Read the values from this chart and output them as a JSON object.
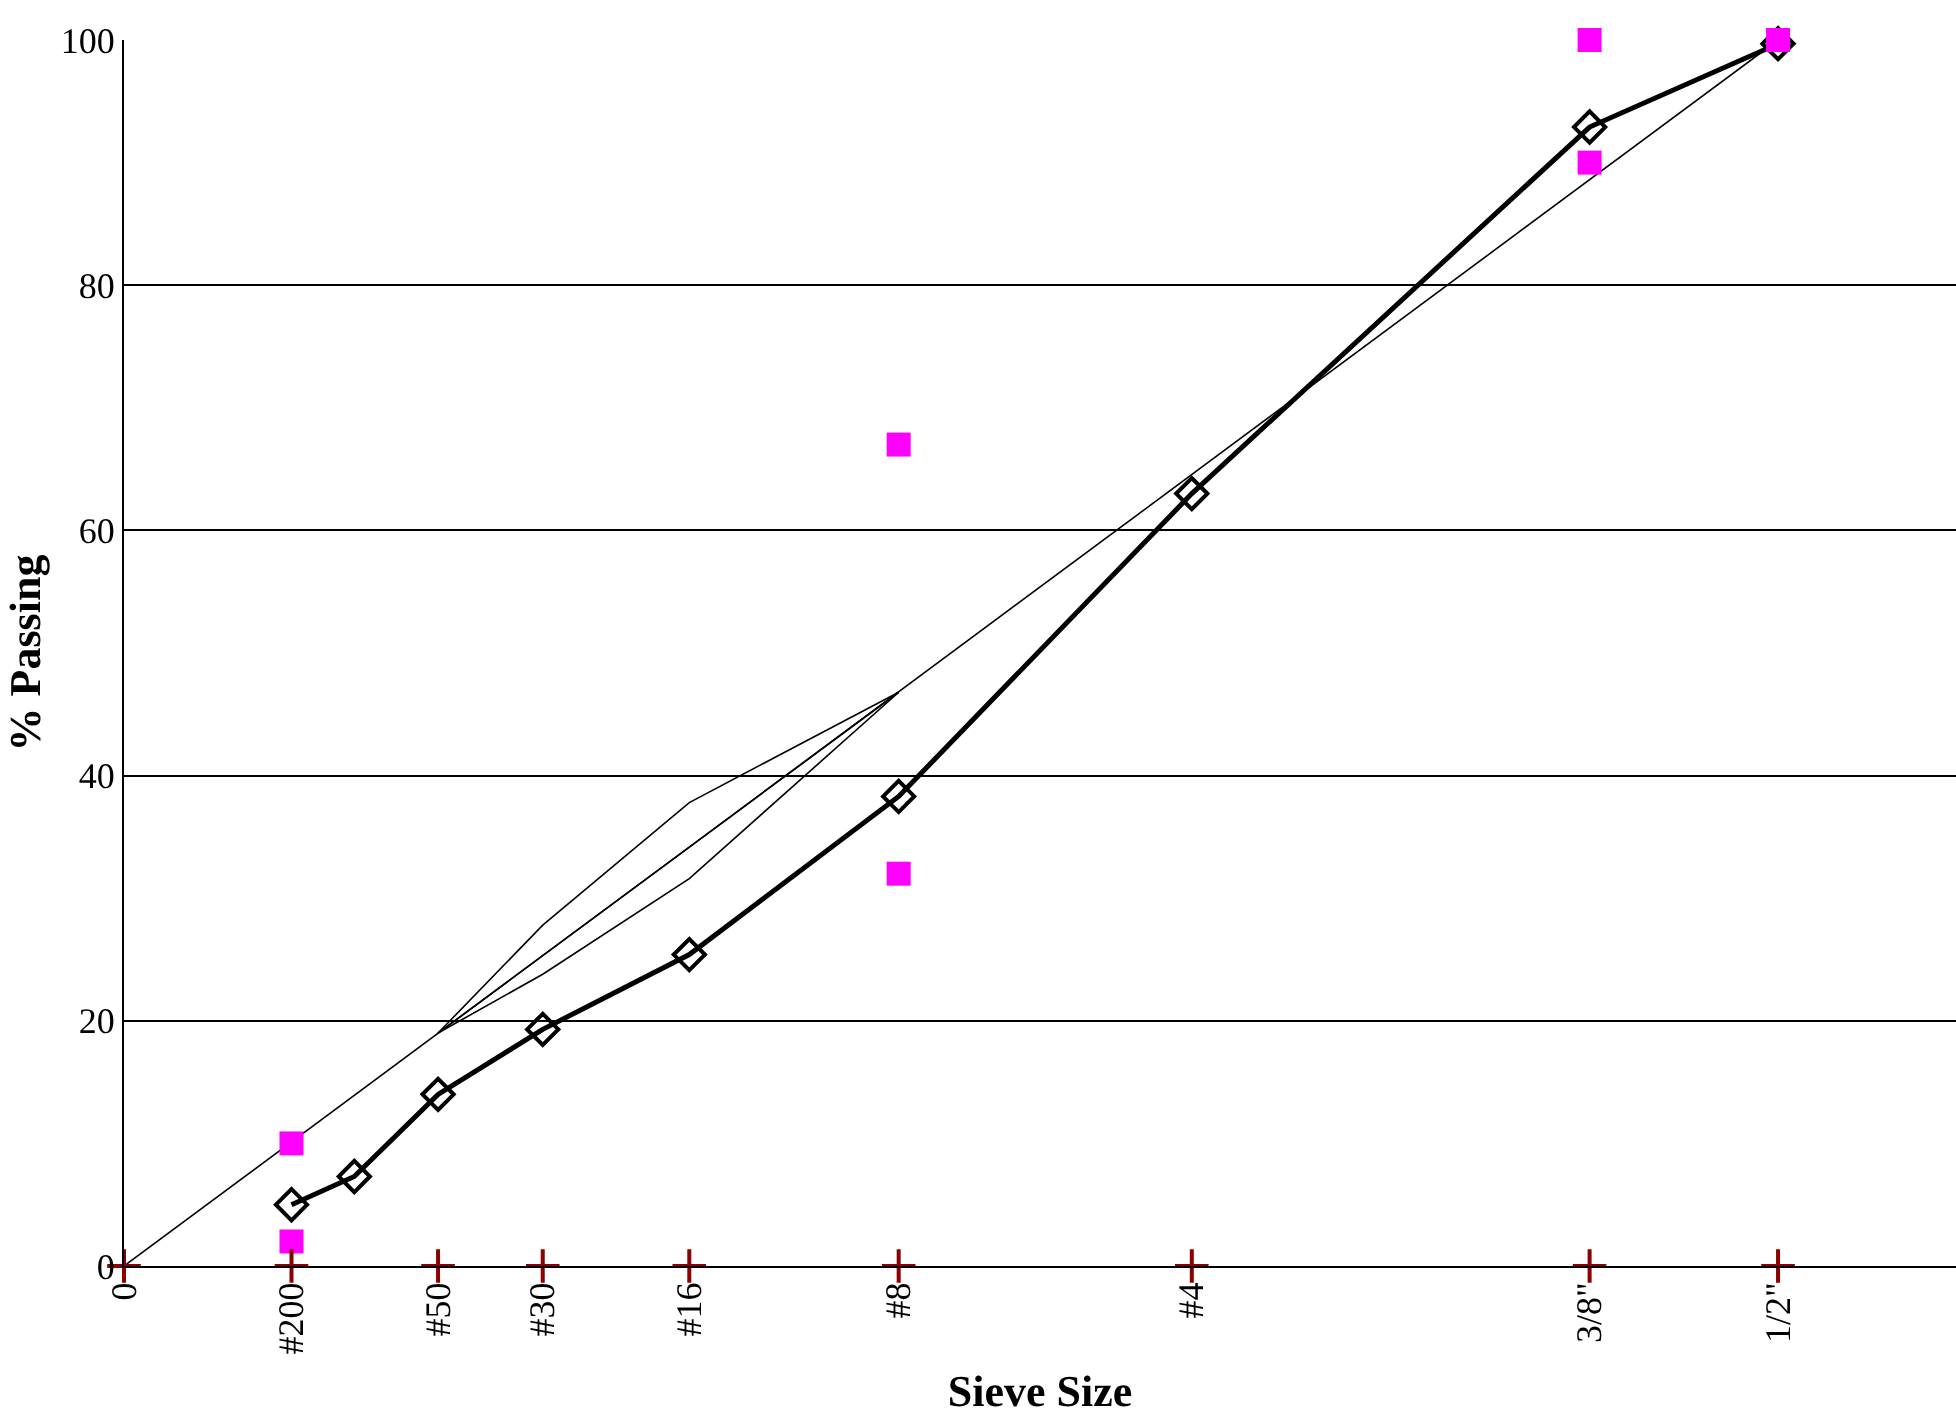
{
  "chart_data": {
    "type": "line",
    "xlabel": "Sieve Size",
    "ylabel": "% Passing",
    "categories": [
      "0",
      null,
      null,
      null,
      null,
      null,
      null,
      null,
      "#200",
      null,
      null,
      null,
      null,
      null,
      null,
      "#50",
      null,
      null,
      null,
      null,
      "#30",
      null,
      null,
      null,
      null,
      null,
      null,
      "#16",
      null,
      null,
      null,
      null,
      null,
      null,
      null,
      null,
      null,
      "#8",
      null,
      null,
      null,
      null,
      null,
      null,
      null,
      null,
      null,
      null,
      null,
      null,
      null,
      "#4",
      null,
      null,
      null,
      null,
      null,
      null,
      null,
      null,
      null,
      null,
      null,
      null,
      null,
      null,
      null,
      null,
      null,
      null,
      "3/8\"",
      null,
      null,
      null,
      null,
      null,
      null,
      null,
      null,
      "1/2\"",
      null,
      null,
      null,
      null,
      null,
      null,
      null,
      null
    ],
    "ylim": [
      0,
      100
    ],
    "yticks": [
      0,
      20,
      40,
      60,
      80,
      100
    ],
    "grid": "y",
    "series": [
      {
        "color": "#000000",
        "marker": "none",
        "values": [
          0,
          null,
          null,
          null,
          null,
          null,
          null,
          null,
          null,
          null,
          null,
          null,
          null,
          null,
          null,
          null,
          null,
          null,
          null,
          null,
          null,
          null,
          null,
          null,
          null,
          null,
          null,
          null,
          null,
          null,
          null,
          null,
          null,
          null,
          null,
          null,
          null,
          null,
          null,
          null,
          null,
          null,
          null,
          null,
          null,
          null,
          null,
          null,
          null,
          null,
          null,
          null,
          null,
          null,
          null,
          null,
          null,
          null,
          null,
          null,
          null,
          null,
          null,
          null,
          null,
          null,
          null,
          null,
          null,
          null,
          null,
          null,
          null,
          null,
          null,
          null,
          null,
          null,
          null,
          100,
          null,
          null,
          null,
          null,
          null,
          null,
          null,
          null
        ]
      },
      {
        "color": "#000000",
        "marker": "none",
        "values": [
          null,
          null,
          null,
          null,
          null,
          null,
          null,
          null,
          null,
          null,
          null,
          null,
          null,
          null,
          null,
          19.0,
          null,
          null,
          null,
          null,
          27.8,
          null,
          null,
          null,
          null,
          null,
          null,
          37.8,
          null,
          null,
          null,
          null,
          null,
          null,
          null,
          null,
          null,
          46.8,
          null,
          null,
          null,
          null,
          null,
          null,
          null,
          null,
          null,
          null,
          null,
          null,
          null,
          null,
          null,
          null,
          null,
          null,
          null,
          null,
          null,
          null,
          null,
          null,
          null,
          null,
          null,
          null,
          null,
          null,
          null,
          null,
          null,
          null,
          null,
          null,
          null,
          null,
          null,
          null,
          null,
          null,
          null,
          null,
          null,
          null,
          null,
          null,
          null,
          null
        ]
      },
      {
        "color": "#000000",
        "marker": "none",
        "values": [
          null,
          null,
          null,
          null,
          null,
          null,
          null,
          null,
          null,
          null,
          null,
          null,
          null,
          null,
          null,
          19.0,
          null,
          null,
          null,
          null,
          null,
          null,
          null,
          null,
          null,
          null,
          null,
          null,
          null,
          null,
          null,
          null,
          null,
          null,
          null,
          null,
          null,
          46.8,
          null,
          null,
          null,
          null,
          null,
          null,
          null,
          null,
          null,
          null,
          null,
          null,
          null,
          null,
          null,
          null,
          null,
          null,
          null,
          null,
          null,
          null,
          null,
          null,
          null,
          null,
          null,
          null,
          null,
          null,
          null,
          null,
          null,
          null,
          null,
          null,
          null,
          null,
          null,
          null,
          null,
          null,
          null,
          null,
          null,
          null,
          null,
          null,
          null,
          null
        ]
      },
      {
        "color": "#000000",
        "marker": "none",
        "values": [
          null,
          null,
          null,
          null,
          null,
          null,
          null,
          null,
          null,
          null,
          null,
          null,
          null,
          null,
          null,
          19.0,
          null,
          null,
          null,
          null,
          23.8,
          null,
          null,
          null,
          null,
          null,
          null,
          31.6,
          null,
          null,
          null,
          null,
          null,
          null,
          null,
          null,
          null,
          46.8,
          null,
          null,
          null,
          null,
          null,
          null,
          null,
          null,
          null,
          null,
          null,
          null,
          null,
          null,
          null,
          null,
          null,
          null,
          null,
          null,
          null,
          null,
          null,
          null,
          null,
          null,
          null,
          null,
          null,
          null,
          null,
          null,
          null,
          null,
          null,
          null,
          null,
          null,
          null,
          null,
          null,
          null,
          null,
          null,
          null,
          null,
          null,
          null,
          null,
          null
        ]
      },
      {
        "color": "#000000",
        "marker": "diamond",
        "values": [
          null,
          null,
          null,
          null,
          null,
          null,
          null,
          null,
          5.0,
          null,
          null,
          7.3,
          null,
          null,
          null,
          14.0,
          null,
          null,
          null,
          null,
          19.3,
          null,
          null,
          null,
          null,
          null,
          null,
          25.4,
          null,
          null,
          null,
          null,
          null,
          null,
          null,
          null,
          null,
          38.3,
          null,
          null,
          null,
          null,
          null,
          null,
          null,
          null,
          null,
          null,
          null,
          null,
          null,
          63.0,
          null,
          null,
          null,
          null,
          null,
          null,
          null,
          null,
          null,
          null,
          null,
          null,
          null,
          null,
          null,
          null,
          null,
          null,
          92.9,
          null,
          null,
          null,
          null,
          null,
          null,
          null,
          null,
          99.7,
          null,
          null,
          null,
          null,
          null,
          null,
          null,
          null
        ]
      },
      {
        "type": "scatter",
        "color": "#ff00ff",
        "marker": "square",
        "values": [
          null,
          null,
          null,
          null,
          null,
          null,
          null,
          null,
          10,
          null,
          null,
          null,
          null,
          null,
          null,
          null,
          null,
          null,
          null,
          null,
          null,
          null,
          null,
          null,
          null,
          null,
          null,
          null,
          null,
          null,
          null,
          null,
          null,
          null,
          null,
          null,
          null,
          67,
          null,
          null,
          null,
          null,
          null,
          null,
          null,
          null,
          null,
          null,
          null,
          null,
          null,
          null,
          null,
          null,
          null,
          null,
          null,
          null,
          null,
          null,
          null,
          null,
          null,
          null,
          null,
          null,
          null,
          null,
          null,
          null,
          100,
          null,
          null,
          null,
          null,
          null,
          null,
          null,
          null,
          100,
          null,
          null,
          null,
          null,
          null,
          null,
          null,
          null
        ]
      },
      {
        "type": "scatter",
        "color": "#ff00ff",
        "marker": "square",
        "values": [
          null,
          null,
          null,
          null,
          null,
          null,
          null,
          null,
          2,
          null,
          null,
          null,
          null,
          null,
          null,
          null,
          null,
          null,
          null,
          null,
          null,
          null,
          null,
          null,
          null,
          null,
          null,
          null,
          null,
          null,
          null,
          null,
          null,
          null,
          null,
          null,
          null,
          32,
          null,
          null,
          null,
          null,
          null,
          null,
          null,
          null,
          null,
          null,
          null,
          null,
          null,
          null,
          null,
          null,
          null,
          null,
          null,
          null,
          null,
          null,
          null,
          null,
          null,
          null,
          null,
          null,
          null,
          null,
          null,
          null,
          90,
          null,
          null,
          null,
          null,
          null,
          null,
          null,
          null,
          null,
          null,
          null,
          null,
          null,
          null,
          null,
          null,
          null
        ]
      },
      {
        "type": "scatter",
        "color": "#8b0000",
        "marker": "cross",
        "values": [
          0,
          null,
          null,
          null,
          null,
          null,
          null,
          null,
          0,
          null,
          null,
          null,
          null,
          null,
          null,
          0,
          null,
          null,
          null,
          null,
          0,
          null,
          null,
          null,
          null,
          null,
          null,
          0,
          null,
          null,
          null,
          null,
          null,
          null,
          null,
          null,
          null,
          0,
          null,
          null,
          null,
          null,
          null,
          null,
          null,
          null,
          null,
          null,
          null,
          null,
          null,
          0,
          null,
          null,
          null,
          null,
          null,
          null,
          null,
          null,
          null,
          null,
          null,
          null,
          null,
          null,
          null,
          null,
          null,
          null,
          0,
          null,
          null,
          null,
          null,
          null,
          null,
          null,
          null,
          0,
          null,
          null,
          null,
          null,
          null,
          null,
          null,
          null
        ]
      }
    ]
  }
}
